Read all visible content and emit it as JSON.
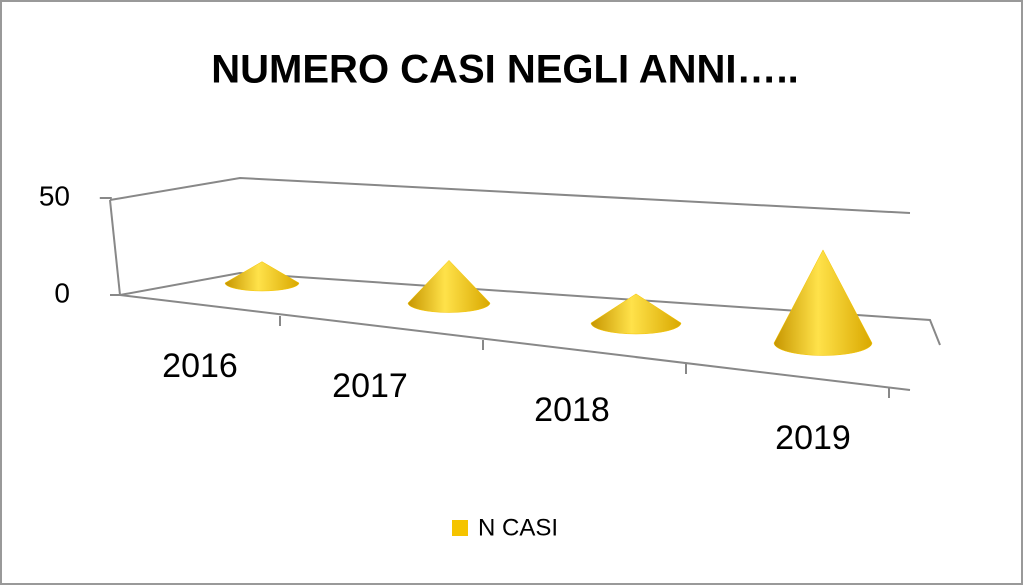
{
  "chart_data": {
    "type": "bar",
    "title": "NUMERO CASI NEGLI ANNI…..",
    "categories": [
      "2016",
      "2017",
      "2018",
      "2019"
    ],
    "series": [
      {
        "name": "N CASI",
        "color": "#f5c400",
        "values": [
          11,
          22,
          15,
          48
        ]
      }
    ],
    "ylim": [
      0,
      50
    ],
    "yticks": [
      0,
      50
    ],
    "legend": "bottom"
  }
}
